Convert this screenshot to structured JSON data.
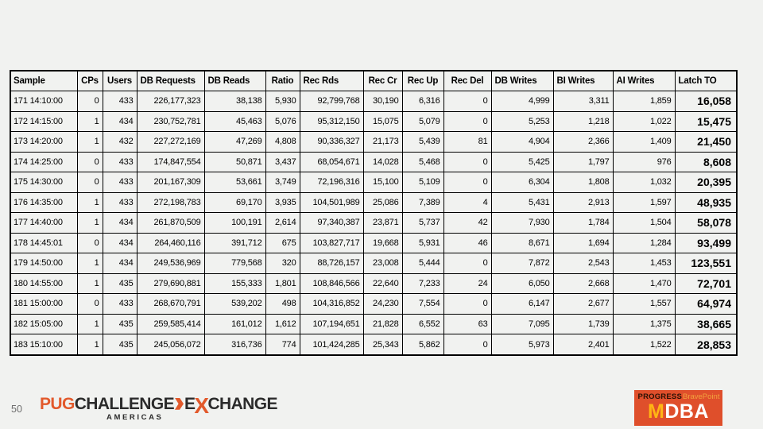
{
  "page": {
    "number": "50",
    "background": "#f1f2f0"
  },
  "table": {
    "headers": [
      "Sample",
      "CPs",
      "Users",
      "DB Requests",
      "DB Reads",
      "Ratio",
      "Rec Rds",
      "Rec Cr",
      "Rec Up",
      "Rec Del",
      "DB Writes",
      "BI Writes",
      "AI Writes",
      "Latch TO"
    ],
    "rows": [
      [
        "171 14:10:00",
        "0",
        "433",
        "226,177,323",
        "38,138",
        "5,930",
        "92,799,768",
        "30,190",
        "6,316",
        "0",
        "4,999",
        "3,311",
        "1,859",
        "16,058"
      ],
      [
        "172 14:15:00",
        "1",
        "434",
        "230,752,781",
        "45,463",
        "5,076",
        "95,312,150",
        "15,075",
        "5,079",
        "0",
        "5,253",
        "1,218",
        "1,022",
        "15,475"
      ],
      [
        "173 14:20:00",
        "1",
        "432",
        "227,272,169",
        "47,269",
        "4,808",
        "90,336,327",
        "21,173",
        "5,439",
        "81",
        "4,904",
        "2,366",
        "1,409",
        "21,450"
      ],
      [
        "174 14:25:00",
        "0",
        "433",
        "174,847,554",
        "50,871",
        "3,437",
        "68,054,671",
        "14,028",
        "5,468",
        "0",
        "5,425",
        "1,797",
        "976",
        "8,608"
      ],
      [
        "175 14:30:00",
        "0",
        "433",
        "201,167,309",
        "53,661",
        "3,749",
        "72,196,316",
        "15,100",
        "5,109",
        "0",
        "6,304",
        "1,808",
        "1,032",
        "20,395"
      ],
      [
        "176 14:35:00",
        "1",
        "433",
        "272,198,783",
        "69,170",
        "3,935",
        "104,501,989",
        "25,086",
        "7,389",
        "4",
        "5,431",
        "2,913",
        "1,597",
        "48,935"
      ],
      [
        "177 14:40:00",
        "1",
        "434",
        "261,870,509",
        "100,191",
        "2,614",
        "97,340,387",
        "23,871",
        "5,737",
        "42",
        "7,930",
        "1,784",
        "1,504",
        "58,078"
      ],
      [
        "178 14:45:01",
        "0",
        "434",
        "264,460,116",
        "391,712",
        "675",
        "103,827,717",
        "19,668",
        "5,931",
        "46",
        "8,671",
        "1,694",
        "1,284",
        "93,499"
      ],
      [
        "179 14:50:00",
        "1",
        "434",
        "249,536,969",
        "779,568",
        "320",
        "88,726,157",
        "23,008",
        "5,444",
        "0",
        "7,872",
        "2,543",
        "1,453",
        "123,551"
      ],
      [
        "180 14:55:00",
        "1",
        "435",
        "279,690,881",
        "155,333",
        "1,801",
        "108,846,566",
        "22,640",
        "7,233",
        "24",
        "6,050",
        "2,668",
        "1,470",
        "72,701"
      ],
      [
        "181 15:00:00",
        "0",
        "433",
        "268,670,791",
        "539,202",
        "498",
        "104,316,852",
        "24,230",
        "7,554",
        "0",
        "6,147",
        "2,677",
        "1,557",
        "64,974"
      ],
      [
        "182 15:05:00",
        "1",
        "435",
        "259,585,414",
        "161,012",
        "1,612",
        "107,194,651",
        "21,828",
        "6,552",
        "63",
        "7,095",
        "1,739",
        "1,375",
        "38,665"
      ],
      [
        "183 15:10:00",
        "1",
        "435",
        "245,056,072",
        "316,736",
        "774",
        "101,424,285",
        "25,343",
        "5,862",
        "0",
        "5,973",
        "2,401",
        "1,522",
        "28,853"
      ]
    ]
  },
  "logos": {
    "pug": {
      "part_pug": "PUG",
      "part_challenge": "CHALLENGE",
      "part_e": "E",
      "part_x": "X",
      "part_change": "CHANGE",
      "americas": "AMERICAS",
      "orange": "#e2592b",
      "dark": "#2b2b2b"
    },
    "mdba": {
      "progress": "PROGRESS",
      "bravepoint": "BravePoint",
      "mdba_m": "M",
      "mdba_dba": "DBA",
      "box_color": "#df4f2b",
      "accent_yellow": "#ffb514"
    }
  }
}
